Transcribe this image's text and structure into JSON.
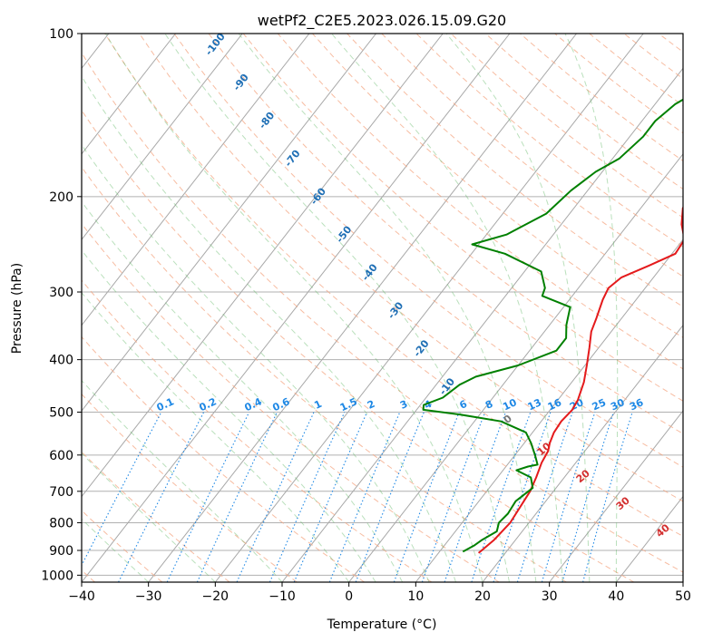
{
  "chart_data": {
    "type": "line",
    "title": "wetPf2_C2E5.2023.026.15.09.G20",
    "xlabel": "Temperature (°C)",
    "ylabel": "Pressure (hPa)",
    "xlim": [
      -40,
      50
    ],
    "ylim": [
      1030,
      100
    ],
    "y_scale": "log",
    "grid": true,
    "x_ticks": [
      -40,
      -30,
      -20,
      -10,
      0,
      10,
      20,
      30,
      40,
      50
    ],
    "y_ticks": [
      1000,
      900,
      800,
      700,
      600,
      500,
      400,
      300,
      200,
      100
    ],
    "series": [
      {
        "color": "#e41a1c",
        "points": [
          [
            16.0,
            910
          ],
          [
            16.8,
            860
          ],
          [
            17.2,
            800
          ],
          [
            16.8,
            740
          ],
          [
            16.5,
            700
          ],
          [
            15.8,
            660
          ],
          [
            14.9,
            620
          ],
          [
            14.5,
            590
          ],
          [
            13.8,
            570
          ],
          [
            13.2,
            545
          ],
          [
            13.0,
            520
          ],
          [
            13.3,
            495
          ],
          [
            13.0,
            475
          ],
          [
            11.8,
            440
          ],
          [
            10.3,
            410
          ],
          [
            8.6,
            380
          ],
          [
            7.0,
            355
          ],
          [
            6.2,
            335
          ],
          [
            5.0,
            310
          ],
          [
            4.5,
            295
          ],
          [
            5.2,
            282
          ],
          [
            8.0,
            268
          ],
          [
            10.5,
            255
          ],
          [
            10.2,
            240
          ],
          [
            8.0,
            225
          ],
          [
            6.3,
            210
          ],
          [
            5.8,
            195
          ],
          [
            4.7,
            180
          ],
          [
            4.2,
            170
          ],
          [
            4.7,
            160
          ],
          [
            6.0,
            150
          ],
          [
            7.2,
            140
          ],
          [
            8.3,
            130
          ],
          [
            9.0,
            120
          ],
          [
            9.3,
            110
          ],
          [
            9.0,
            100
          ]
        ]
      },
      {
        "color": "#008000",
        "points": [
          [
            13.5,
            905
          ],
          [
            14.5,
            880
          ],
          [
            15.0,
            860
          ],
          [
            16.2,
            830
          ],
          [
            15.5,
            800
          ],
          [
            15.8,
            770
          ],
          [
            15.5,
            730
          ],
          [
            16.5,
            690
          ],
          [
            15.0,
            660
          ],
          [
            12.0,
            640
          ],
          [
            13.3,
            630
          ],
          [
            14.5,
            625
          ],
          [
            13.0,
            600
          ],
          [
            11.0,
            570
          ],
          [
            9.0,
            545
          ],
          [
            4.0,
            520
          ],
          [
            -3.0,
            505
          ],
          [
            -9.0,
            495
          ],
          [
            -9.5,
            485
          ],
          [
            -7.5,
            470
          ],
          [
            -6.5,
            445
          ],
          [
            -5.0,
            430
          ],
          [
            0.0,
            410
          ],
          [
            4.0,
            385
          ],
          [
            4.0,
            365
          ],
          [
            2.5,
            345
          ],
          [
            1.0,
            320
          ],
          [
            -4.5,
            305
          ],
          [
            -5.0,
            295
          ],
          [
            -7.5,
            275
          ],
          [
            -15.0,
            255
          ],
          [
            -21.0,
            245
          ],
          [
            -17.0,
            235
          ],
          [
            -13.5,
            215
          ],
          [
            -12.5,
            195
          ],
          [
            -11.0,
            180
          ],
          [
            -9.0,
            170
          ],
          [
            -8.0,
            155
          ],
          [
            -8.0,
            145
          ],
          [
            -7.0,
            135
          ],
          [
            -4.5,
            125
          ],
          [
            -2.0,
            115
          ],
          [
            1.0,
            105
          ],
          [
            2.5,
            100
          ]
        ]
      }
    ],
    "dry_adiabat_labels": [
      "-100",
      "-90",
      "-80",
      "-70",
      "-60",
      "-50",
      "-40",
      "-30",
      "-20",
      "-10"
    ],
    "mixing_ratio_labels": [
      "0.1",
      "0.2",
      "0.4",
      "0.6",
      "1",
      "1.5",
      "2",
      "3",
      "4",
      "6",
      "8",
      "10",
      "13",
      "16",
      "20",
      "25",
      "30",
      "36"
    ],
    "moist_adiabat_labels": [
      "0",
      "10",
      "20",
      "30",
      "40"
    ]
  }
}
